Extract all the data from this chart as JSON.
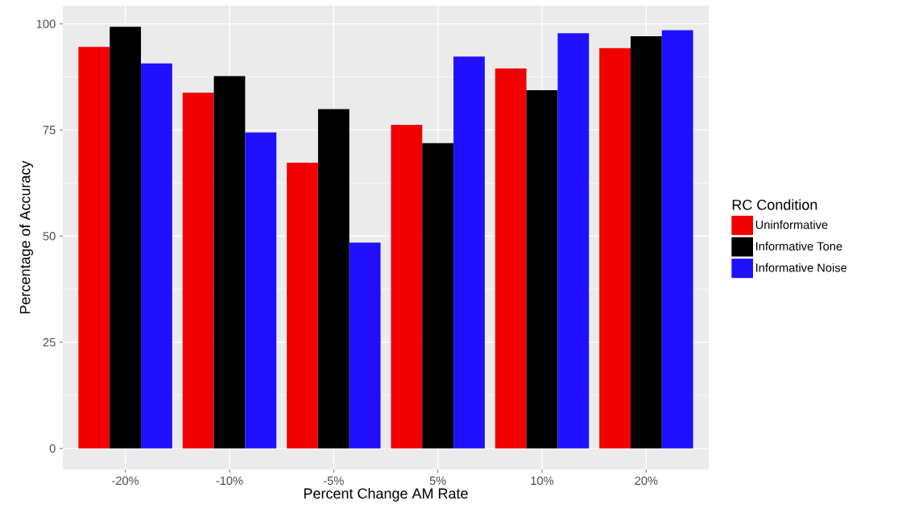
{
  "chart_data": {
    "type": "bar",
    "xlabel": "Percent Change AM Rate",
    "ylabel": "Percentage of Accuracy",
    "legend_title": "RC Condition",
    "categories": [
      "-20%",
      "-10%",
      "-5%",
      "5%",
      "10%",
      "20%"
    ],
    "series": [
      {
        "name": "Uninformative",
        "color": "#f00000",
        "values": [
          94.6,
          83.8,
          67.3,
          76.2,
          89.5,
          94.3
        ]
      },
      {
        "name": "Informative Tone",
        "color": "#000000",
        "values": [
          99.3,
          87.7,
          79.9,
          71.9,
          84.4,
          97.1
        ]
      },
      {
        "name": "Informative Noise",
        "color": "#2010ff",
        "values": [
          90.7,
          74.4,
          48.5,
          92.3,
          97.8,
          98.5
        ]
      }
    ],
    "ylim": [
      -4.97,
      104.3
    ],
    "yticks": [
      0,
      25,
      50,
      75,
      100
    ],
    "grid": true,
    "legend": "right"
  }
}
